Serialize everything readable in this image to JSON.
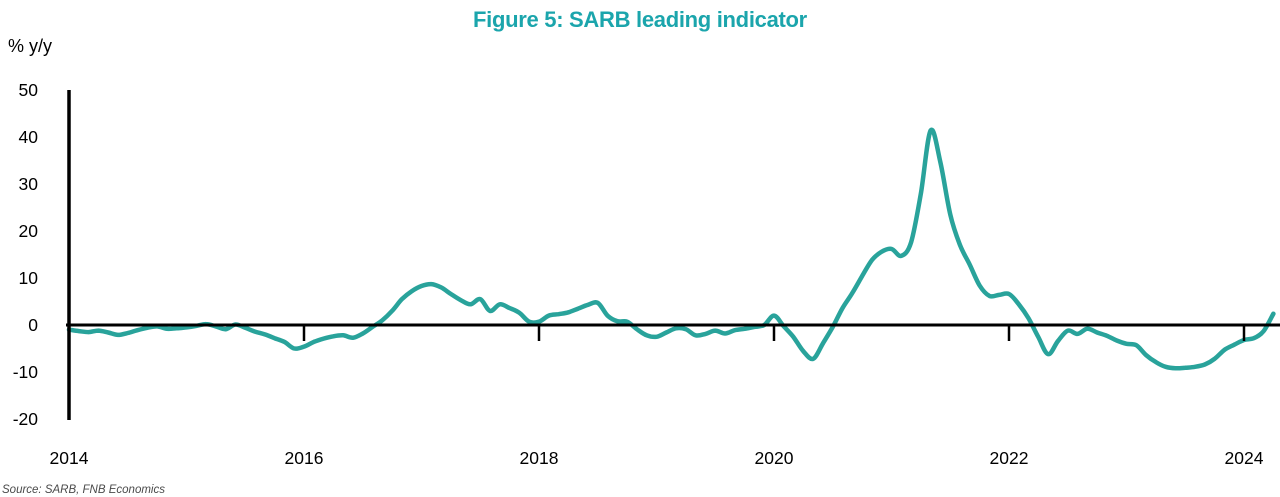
{
  "title": "Figure 5: SARB leading indicator",
  "source_note": "Source: SARB, FNB Economics",
  "colors": {
    "line": "#29a39b",
    "title": "#1ba5ac",
    "axis": "#000000",
    "tick_label": "#000000",
    "source_text": "#4a4a4a",
    "background": "#ffffff"
  },
  "chart_data": {
    "type": "line",
    "title": "Figure 5: SARB leading indicator",
    "xlabel": "",
    "ylabel": "% y/y",
    "ylim": [
      -20,
      50
    ],
    "xlim": [
      2014,
      2024.4
    ],
    "y_ticks": [
      50,
      40,
      30,
      20,
      10,
      0,
      -10,
      -20
    ],
    "x_ticks": [
      2014,
      2016,
      2018,
      2020,
      2022,
      2024
    ],
    "x_tick_labels": [
      "2014",
      "2016",
      "2018",
      "2020",
      "2022",
      "2024"
    ],
    "grid": false,
    "legend": "none",
    "zero_baseline": true,
    "series": [
      {
        "name": "SARB leading indicator, % y/y",
        "x_start_decimal_year": 2014.0,
        "x_step_months": 1,
        "x_end_decimal_year": 2024.25,
        "values_monthly": [
          -1.0,
          -1.3,
          -1.5,
          -1.2,
          -1.6,
          -2.1,
          -1.7,
          -1.1,
          -0.6,
          -0.3,
          -0.8,
          -0.7,
          -0.5,
          -0.2,
          0.2,
          -0.3,
          -0.9,
          0.1,
          -0.6,
          -1.4,
          -2.0,
          -2.8,
          -3.6,
          -5.0,
          -4.6,
          -3.6,
          -2.9,
          -2.4,
          -2.2,
          -2.7,
          -1.8,
          -0.4,
          1.0,
          3.0,
          5.5,
          7.2,
          8.3,
          8.7,
          8.0,
          6.6,
          5.3,
          4.4,
          5.5,
          3.0,
          4.4,
          3.6,
          2.6,
          0.7,
          0.7,
          2.0,
          2.3,
          2.7,
          3.5,
          4.3,
          4.7,
          2.0,
          0.8,
          0.7,
          -0.9,
          -2.2,
          -2.5,
          -1.6,
          -0.7,
          -0.9,
          -2.2,
          -1.9,
          -1.2,
          -1.8,
          -1.1,
          -0.8,
          -0.4,
          0.0,
          2.0,
          -0.3,
          -2.6,
          -5.6,
          -7.2,
          -3.9,
          -0.4,
          3.6,
          6.8,
          10.4,
          13.8,
          15.6,
          16.2,
          14.7,
          17.6,
          28.0,
          41.4,
          34.5,
          23.5,
          17.0,
          12.8,
          8.4,
          6.2,
          6.4,
          6.6,
          4.4,
          1.4,
          -2.6,
          -6.2,
          -3.4,
          -1.2,
          -1.9,
          -0.8,
          -1.6,
          -2.3,
          -3.3,
          -4.0,
          -4.3,
          -6.4,
          -7.9,
          -8.9,
          -9.2,
          -9.1,
          -8.9,
          -8.4,
          -7.2,
          -5.3,
          -4.2,
          -3.2,
          -2.8,
          -1.3,
          2.4
        ],
        "peak": {
          "decimal_year": 2021.33,
          "value": 41.4
        },
        "troughs": [
          {
            "decimal_year": 2020.33,
            "value": -7.2
          },
          {
            "decimal_year": 2023.42,
            "value": -9.2
          }
        ]
      }
    ]
  }
}
